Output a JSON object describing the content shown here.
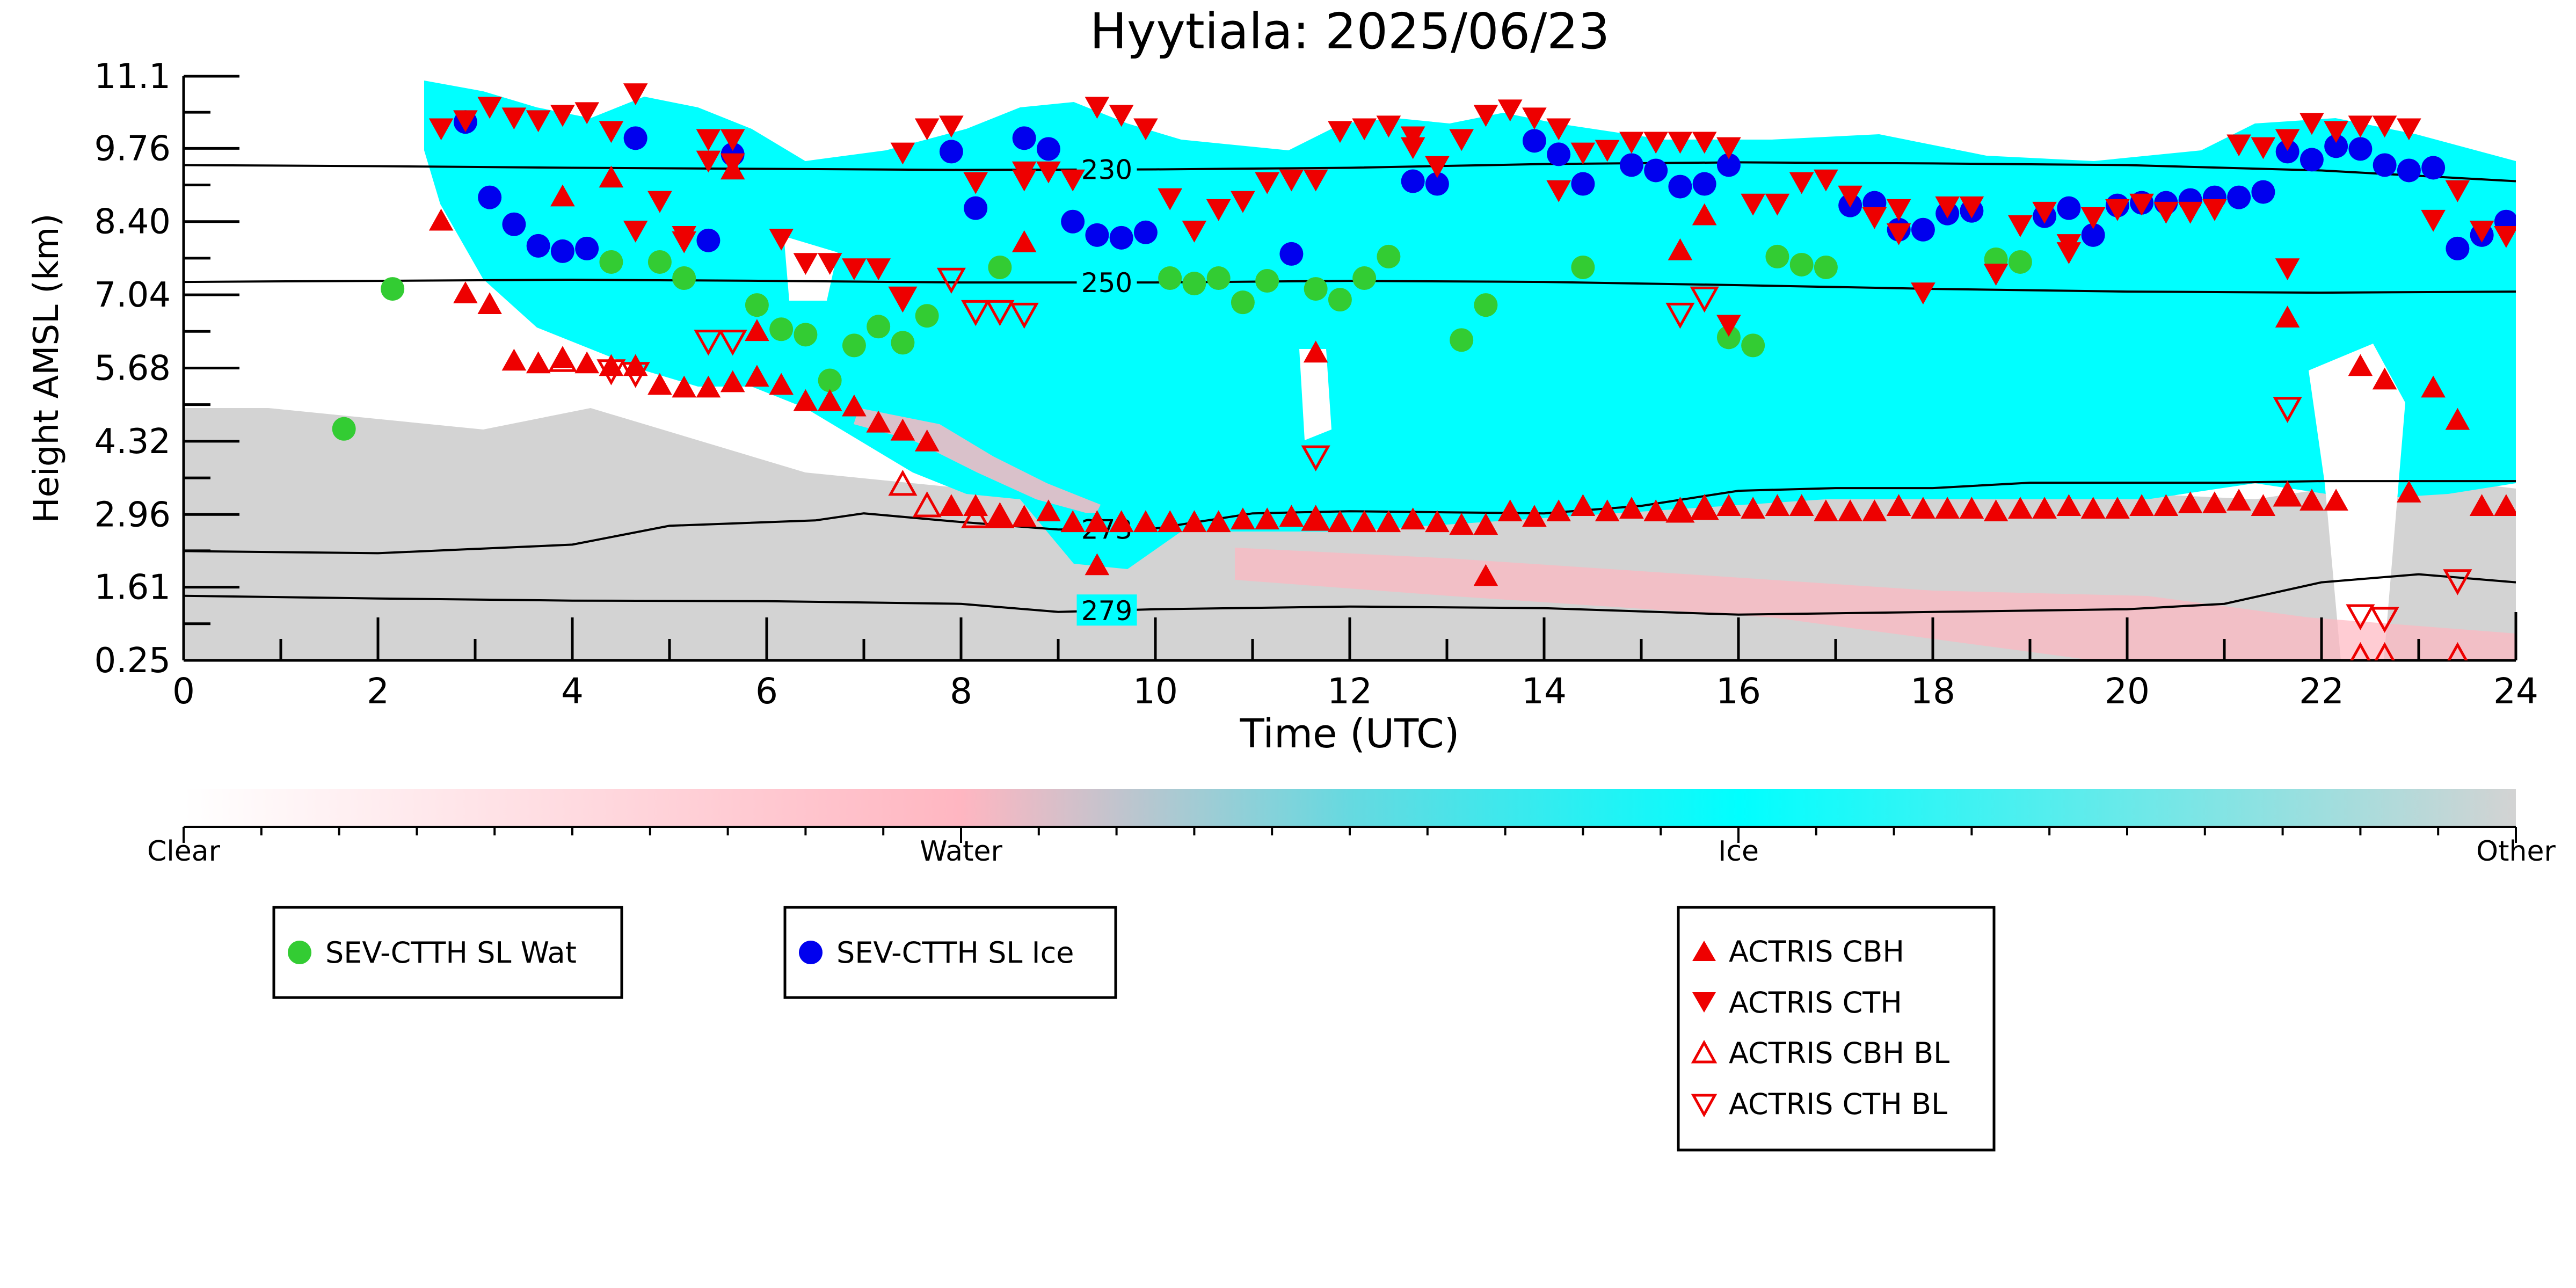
{
  "chart_data": {
    "type": "scatter",
    "title": "Hyytiala: 2025/06/23",
    "xlabel": "Time (UTC)",
    "ylabel": "Height AMSL (km)",
    "xlim": [
      0,
      24
    ],
    "ylim": [
      0.25,
      11.1
    ],
    "x_ticks": [
      "0",
      "2",
      "4",
      "6",
      "8",
      "10",
      "12",
      "14",
      "16",
      "18",
      "20",
      "22",
      "24"
    ],
    "y_ticks": [
      "0.25",
      "1.61",
      "2.96",
      "4.32",
      "5.68",
      "7.04",
      "8.40",
      "9.76",
      "11.1"
    ],
    "grid": false,
    "background": "cloud phase classification image (Clear / Water / Ice / Other)",
    "phase_colorbar": {
      "labels": [
        "Clear",
        "Water",
        "Ice",
        "Other"
      ],
      "colors": [
        "#ffffff",
        "#ffb6c1",
        "#00ffff",
        "#d3d3d3"
      ]
    },
    "isotherms": [
      {
        "label": "230",
        "label_x": 9.5,
        "x": [
          0,
          2,
          4,
          6,
          8,
          10,
          12,
          14,
          16,
          18,
          20,
          22,
          24
        ],
        "y": [
          9.45,
          9.43,
          9.4,
          9.38,
          9.36,
          9.37,
          9.4,
          9.47,
          9.5,
          9.48,
          9.45,
          9.35,
          9.15
        ]
      },
      {
        "label": "250",
        "label_x": 9.5,
        "x": [
          0,
          2,
          4,
          6,
          8,
          10,
          12,
          14,
          16,
          18,
          20,
          22,
          24
        ],
        "y": [
          7.28,
          7.3,
          7.32,
          7.3,
          7.27,
          7.27,
          7.3,
          7.28,
          7.22,
          7.15,
          7.1,
          7.08,
          7.1
        ]
      },
      {
        "label": "273",
        "label_x": 9.5,
        "x": [
          0,
          2,
          4,
          5,
          6.5,
          7,
          8,
          9,
          10,
          11,
          12,
          13,
          14,
          15,
          16,
          17,
          18,
          19,
          20,
          21,
          22,
          23,
          24
        ],
        "y": [
          2.28,
          2.24,
          2.4,
          2.75,
          2.85,
          2.98,
          2.82,
          2.68,
          2.7,
          2.98,
          3.02,
          3.0,
          2.98,
          3.12,
          3.4,
          3.45,
          3.45,
          3.55,
          3.55,
          3.55,
          3.58,
          3.58,
          3.58
        ]
      },
      {
        "label": "279",
        "label_x": 9.5,
        "x": [
          0,
          2,
          4,
          6,
          8,
          9,
          10,
          12,
          14,
          16,
          18,
          20,
          21,
          22,
          23,
          24
        ],
        "y": [
          1.45,
          1.4,
          1.36,
          1.35,
          1.3,
          1.15,
          1.2,
          1.25,
          1.22,
          1.1,
          1.15,
          1.2,
          1.3,
          1.7,
          1.85,
          1.7
        ]
      }
    ],
    "series": [
      {
        "name": "SEV-CTTH SL Wat",
        "marker": "circle",
        "filled": true,
        "color": "#33cc33",
        "x": [
          1.65,
          2.15,
          4.4,
          4.9,
          5.15,
          5.9,
          6.15,
          6.4,
          6.65,
          6.9,
          7.15,
          7.4,
          7.65,
          8.4,
          10.15,
          10.4,
          10.65,
          10.9,
          11.15,
          11.65,
          11.9,
          12.15,
          12.4,
          13.15,
          13.4,
          14.4,
          15.9,
          16.15,
          16.4,
          16.65,
          16.9,
          18.65,
          18.9
        ],
        "y": [
          4.55,
          7.15,
          7.65,
          7.65,
          7.35,
          6.85,
          6.4,
          6.3,
          5.45,
          6.1,
          6.45,
          6.15,
          6.65,
          7.55,
          7.35,
          7.25,
          7.35,
          6.9,
          7.3,
          7.15,
          6.95,
          7.35,
          7.75,
          6.2,
          6.85,
          7.55,
          6.25,
          6.1,
          7.75,
          7.6,
          7.55,
          7.7,
          7.65
        ]
      },
      {
        "name": "SEV-CTTH SL Ice",
        "marker": "circle",
        "filled": true,
        "color": "#0000ee",
        "x": [
          2.9,
          3.15,
          3.4,
          3.65,
          3.9,
          4.15,
          4.65,
          5.4,
          5.65,
          7.9,
          8.15,
          8.65,
          8.9,
          9.15,
          9.4,
          9.65,
          9.9,
          11.4,
          12.65,
          12.9,
          13.9,
          14.15,
          14.4,
          14.9,
          15.15,
          15.4,
          15.65,
          15.9,
          17.15,
          17.4,
          17.65,
          17.9,
          18.15,
          18.4,
          19.15,
          19.4,
          19.65,
          19.9,
          20.15,
          20.4,
          20.65,
          20.9,
          21.15,
          21.4,
          21.65,
          21.9,
          22.15,
          22.4,
          22.65,
          22.9,
          23.15,
          23.4,
          23.65,
          23.9
        ],
        "y": [
          10.25,
          8.85,
          8.35,
          7.95,
          7.85,
          7.9,
          9.95,
          8.05,
          9.65,
          9.7,
          8.65,
          9.95,
          9.75,
          8.4,
          8.15,
          8.1,
          8.2,
          7.8,
          9.15,
          9.1,
          9.9,
          9.65,
          9.1,
          9.45,
          9.35,
          9.05,
          9.1,
          9.45,
          8.7,
          8.75,
          8.25,
          8.25,
          8.55,
          8.6,
          8.5,
          8.65,
          8.15,
          8.7,
          8.75,
          8.75,
          8.8,
          8.85,
          8.85,
          8.95,
          9.7,
          9.55,
          9.8,
          9.75,
          9.45,
          9.35,
          9.4,
          7.9,
          8.15,
          8.4
        ]
      },
      {
        "name": "ACTRIS CBH",
        "marker": "triangle-up",
        "filled": true,
        "color": "#ee0000",
        "x": [
          2.65,
          2.9,
          3.15,
          3.4,
          3.65,
          3.9,
          4.15,
          4.4,
          4.65,
          4.9,
          5.15,
          5.4,
          5.65,
          5.9,
          6.15,
          6.4,
          6.65,
          6.9,
          7.15,
          7.4,
          7.65,
          7.9,
          8.15,
          8.4,
          8.65,
          8.9,
          9.15,
          9.4,
          9.65,
          9.9,
          10.15,
          10.4,
          10.65,
          10.9,
          11.15,
          11.4,
          11.65,
          11.9,
          12.15,
          12.4,
          12.65,
          12.9,
          13.15,
          13.4,
          13.65,
          13.9,
          14.15,
          14.4,
          14.65,
          14.9,
          15.15,
          15.4,
          15.65,
          15.9,
          16.15,
          16.4,
          16.65,
          16.9,
          17.15,
          17.4,
          17.65,
          17.9,
          18.15,
          18.4,
          18.65,
          18.9,
          19.15,
          19.4,
          19.65,
          19.9,
          20.15,
          20.4,
          20.65,
          20.9,
          21.15,
          21.4,
          21.65,
          21.9,
          22.15,
          22.4,
          22.65,
          22.9,
          23.15,
          23.4,
          23.65,
          23.9,
          4.4,
          5.65,
          5.9,
          3.9,
          8.65,
          9.4,
          11.65,
          13.4,
          15.65,
          21.65,
          15.4
        ],
        "y": [
          8.4,
          7.05,
          6.85,
          5.8,
          5.75,
          5.85,
          5.75,
          5.7,
          5.7,
          5.35,
          5.3,
          5.3,
          5.4,
          5.5,
          5.35,
          5.05,
          5.05,
          4.95,
          4.65,
          4.5,
          4.3,
          3.1,
          3.1,
          2.9,
          2.9,
          3.0,
          2.8,
          2.8,
          2.8,
          2.8,
          2.8,
          2.8,
          2.8,
          2.85,
          2.85,
          2.9,
          2.85,
          2.8,
          2.8,
          2.8,
          2.85,
          2.8,
          2.75,
          2.75,
          3.0,
          2.9,
          3.0,
          3.1,
          3.0,
          3.05,
          3.0,
          3.0,
          3.05,
          3.1,
          3.05,
          3.1,
          3.1,
          3.0,
          3.0,
          3.0,
          3.1,
          3.05,
          3.05,
          3.05,
          3.0,
          3.05,
          3.05,
          3.1,
          3.05,
          3.05,
          3.1,
          3.1,
          3.15,
          3.15,
          3.2,
          3.1,
          3.3,
          3.2,
          3.2,
          5.7,
          5.45,
          3.35,
          5.3,
          4.7,
          3.1,
          3.1,
          9.2,
          9.35,
          6.35,
          8.85,
          8.0,
          2.0,
          5.95,
          1.8,
          8.5,
          6.6,
          7.85
        ]
      },
      {
        "name": "ACTRIS CTH",
        "marker": "triangle-down",
        "filled": true,
        "color": "#ee0000",
        "x": [
          2.65,
          2.9,
          3.15,
          3.4,
          3.65,
          3.9,
          4.15,
          4.4,
          4.65,
          4.9,
          5.15,
          5.4,
          5.65,
          6.15,
          6.4,
          6.65,
          6.9,
          7.15,
          7.4,
          7.65,
          7.9,
          8.15,
          8.65,
          8.9,
          9.15,
          9.4,
          9.65,
          9.9,
          10.15,
          10.4,
          10.65,
          10.9,
          11.15,
          11.4,
          11.65,
          11.9,
          12.15,
          12.4,
          12.65,
          12.9,
          13.15,
          13.4,
          13.65,
          13.9,
          14.15,
          14.4,
          14.65,
          14.9,
          15.15,
          15.4,
          15.65,
          15.9,
          16.15,
          16.4,
          16.65,
          16.9,
          17.15,
          17.4,
          17.65,
          17.9,
          18.15,
          18.4,
          18.65,
          18.9,
          19.15,
          19.4,
          19.65,
          19.9,
          20.15,
          20.4,
          20.65,
          20.9,
          21.15,
          21.4,
          21.65,
          21.9,
          22.15,
          22.4,
          22.65,
          22.9,
          23.15,
          23.4,
          23.65,
          23.9,
          5.4,
          5.65,
          7.4,
          8.65,
          12.65,
          14.15,
          15.9,
          17.65,
          18.65,
          19.4,
          21.65,
          5.15,
          4.65
        ],
        "y": [
          10.15,
          10.3,
          10.55,
          10.35,
          10.3,
          10.4,
          10.45,
          10.1,
          10.8,
          8.8,
          8.15,
          9.95,
          9.95,
          8.1,
          7.65,
          7.65,
          7.55,
          7.55,
          9.7,
          10.15,
          10.2,
          9.15,
          9.2,
          9.35,
          9.2,
          10.55,
          10.4,
          10.15,
          8.85,
          8.25,
          8.65,
          8.8,
          9.15,
          9.2,
          9.2,
          10.1,
          10.15,
          10.2,
          10.0,
          9.45,
          9.95,
          10.4,
          10.5,
          10.35,
          10.15,
          9.7,
          9.75,
          9.9,
          9.9,
          9.9,
          9.9,
          9.8,
          8.75,
          8.75,
          9.15,
          9.2,
          8.9,
          8.5,
          8.65,
          7.1,
          8.7,
          8.7,
          7.45,
          8.35,
          8.6,
          8.0,
          8.5,
          8.65,
          8.75,
          8.6,
          8.6,
          8.65,
          9.85,
          9.8,
          9.95,
          10.25,
          10.1,
          10.2,
          10.2,
          10.15,
          8.45,
          9.0,
          8.25,
          8.15,
          9.55,
          9.5,
          7.0,
          9.35,
          9.8,
          9.0,
          6.5,
          8.2,
          7.45,
          7.85,
          7.55,
          8.05,
          8.25
        ]
      },
      {
        "name": "ACTRIS CBH BL",
        "marker": "triangle-up",
        "filled": false,
        "color": "#ee0000",
        "x": [
          3.9,
          7.4,
          7.65,
          8.15,
          8.4,
          11.65,
          15.4,
          15.65,
          21.65,
          22.4,
          22.65,
          23.4
        ],
        "y": [
          5.8,
          3.5,
          3.1,
          2.9,
          2.9,
          2.85,
          3.0,
          3.05,
          3.3,
          0.3,
          0.3,
          0.3
        ]
      },
      {
        "name": "ACTRIS CTH BL",
        "marker": "triangle-down",
        "filled": false,
        "color": "#ee0000",
        "x": [
          4.4,
          4.65,
          5.4,
          5.65,
          7.4,
          7.9,
          8.15,
          8.4,
          8.65,
          11.65,
          15.4,
          15.65,
          21.65,
          22.4,
          22.65,
          23.4
        ],
        "y": [
          5.65,
          5.6,
          6.2,
          6.2,
          7.0,
          7.35,
          6.75,
          6.75,
          6.7,
          4.05,
          6.7,
          7.0,
          4.95,
          1.1,
          1.05,
          1.75
        ]
      }
    ]
  }
}
